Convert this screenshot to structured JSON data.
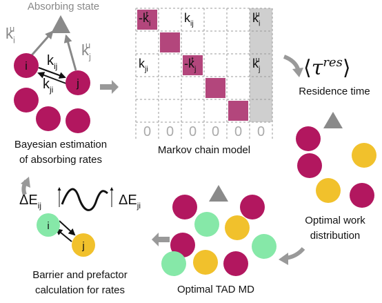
{
  "top_left": {
    "state_label": "Absorbing state",
    "node_i": "i",
    "node_j": "j",
    "k_i_u": {
      "base": "k",
      "sub": "i",
      "sup": "u"
    },
    "k_j_u": {
      "base": "k",
      "sub": "j",
      "sup": "u"
    },
    "k_ij": {
      "base": "k",
      "sub": "ij"
    },
    "k_ji": {
      "base": "k",
      "sub": "ji"
    },
    "caption": [
      "Bayesian estimation",
      "of absorbing rates"
    ]
  },
  "matrix": {
    "cells": [
      {
        "base": "-k",
        "sub": "i",
        "sup": "t"
      },
      {
        "base": "k",
        "sub": "ij"
      },
      {
        "base": "k",
        "sub": "i",
        "sup": "u"
      },
      {
        "base": "k",
        "sub": "ji"
      },
      {
        "base": "-k",
        "sub": "j",
        "sup": "t"
      },
      {
        "base": "k",
        "sub": "j",
        "sup": "u"
      }
    ],
    "last_row": [
      "0",
      "0",
      "0",
      "0",
      "0",
      "0"
    ],
    "caption": "Markov chain model"
  },
  "residence": {
    "symbol": {
      "left": "⟨",
      "base": "τ",
      "sup": "res",
      "right": "⟩"
    },
    "caption": "Residence time"
  },
  "work": {
    "caption": [
      "Optimal work",
      "distribution"
    ]
  },
  "tad": {
    "caption": "Optimal TAD MD"
  },
  "barrier": {
    "de_ij": {
      "base": "ΔE",
      "sub": "ij"
    },
    "de_ji": {
      "base": "ΔE",
      "sub": "ji"
    },
    "node_i": "i",
    "node_j": "j",
    "caption": [
      "Barrier and prefactor",
      "calculation for rates"
    ]
  }
}
